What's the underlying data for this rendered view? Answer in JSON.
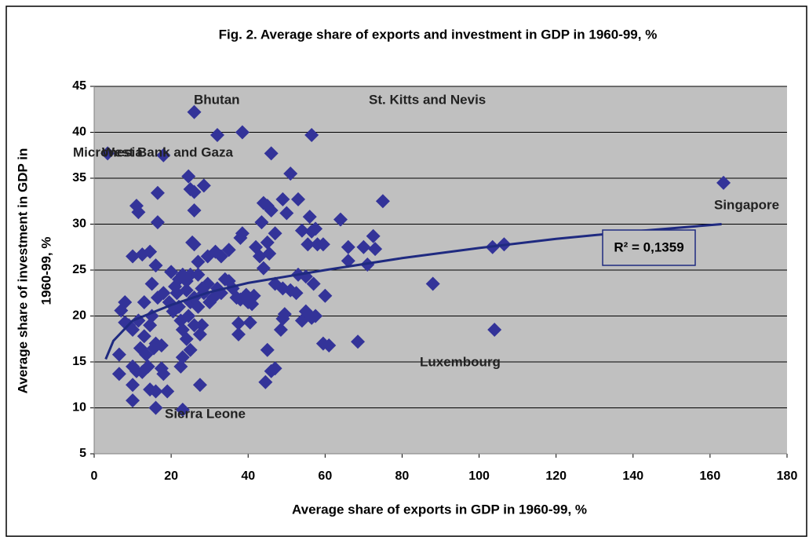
{
  "chart_data": {
    "type": "scatter",
    "title": "Fig. 2. Average share of exports and investment in GDP in 1960-99, %",
    "x_label": "Average share of exports in GDP in 1960-99, %",
    "y_label": [
      "Average share of  investment in GDP in",
      "1960-99, %"
    ],
    "xlim": [
      0,
      180
    ],
    "ylim": [
      5,
      45
    ],
    "xticks": [
      0,
      20,
      40,
      60,
      80,
      100,
      120,
      140,
      160,
      180
    ],
    "yticks": [
      5,
      10,
      15,
      20,
      25,
      30,
      35,
      40,
      45
    ],
    "grid": true,
    "color": "#333399",
    "x": [
      3.5,
      18,
      26,
      32,
      38.5,
      46,
      56.5,
      163.5,
      104,
      88,
      103.5,
      106.5,
      23,
      27.5,
      16,
      24.5,
      25,
      26,
      28.5,
      26,
      25.5,
      26,
      16.5,
      11,
      11.5,
      16.5,
      51,
      49,
      53,
      44,
      45,
      46,
      50,
      43.5,
      47,
      38.5,
      38,
      54,
      56.5,
      57.5,
      56,
      64,
      75,
      72.5,
      73,
      70,
      66,
      66,
      71,
      55.5,
      58,
      59.5,
      42,
      43,
      45.5,
      35,
      33,
      29.5,
      31.5,
      27,
      10,
      12.5,
      14.5,
      16,
      20,
      23,
      25,
      44,
      53,
      55,
      57,
      47,
      49,
      51,
      52.5,
      60,
      7,
      8,
      8,
      9,
      10,
      11.5,
      13,
      14.5,
      15,
      13,
      12,
      13.5,
      15.5,
      17.5,
      16,
      14,
      10,
      11,
      12.5,
      17.5,
      18,
      10,
      14.5,
      16,
      19,
      10,
      6.5,
      6.5,
      15,
      16.5,
      18,
      19.5,
      20.5,
      21.5,
      22,
      22.5,
      23,
      24,
      25,
      23,
      22.5,
      24.5,
      25,
      26,
      27,
      28,
      28.5,
      29.5,
      30,
      31,
      32,
      33,
      34,
      35,
      36,
      37,
      38,
      39.5,
      40,
      41,
      41.5,
      37.5,
      37.5,
      40.5,
      44.5,
      45,
      46,
      47,
      48.5,
      49,
      54,
      55,
      56.5,
      57.5,
      59.5,
      61,
      68.5,
      49.5,
      21,
      22,
      27,
      28,
      24,
      26,
      27.5,
      24,
      45
    ],
    "values": [
      37.7,
      37.5,
      42.2,
      39.7,
      40,
      37.7,
      39.7,
      34.5,
      18.5,
      23.5,
      27.5,
      27.8,
      9.8,
      12.5,
      10,
      35.2,
      33.8,
      33.5,
      34.2,
      31.5,
      28,
      27.8,
      33.4,
      32,
      31.3,
      30.2,
      35.5,
      32.7,
      32.7,
      32.3,
      32,
      31.5,
      31.2,
      30.2,
      29,
      29,
      28.5,
      29.3,
      29.2,
      29.5,
      30.8,
      30.5,
      32.5,
      28.7,
      27.3,
      27.5,
      27.5,
      26,
      25.6,
      27.8,
      27.8,
      27.8,
      27.5,
      26.5,
      26.8,
      27.2,
      26.5,
      26.5,
      27,
      25.9,
      26.5,
      26.7,
      27,
      25.5,
      24.8,
      24.5,
      24.5,
      25.2,
      24.5,
      24.3,
      23.5,
      23.5,
      23,
      22.8,
      22.5,
      22.2,
      20.6,
      21.5,
      19.3,
      19,
      18.5,
      19.5,
      21.5,
      19,
      20,
      17.8,
      16.5,
      15.8,
      16.5,
      16.8,
      17,
      14.5,
      14.5,
      14,
      13.9,
      14.3,
      13.7,
      12.5,
      12,
      11.8,
      11.8,
      10.8,
      15.8,
      13.7,
      23.5,
      22,
      22.5,
      21.5,
      20.5,
      22.5,
      21,
      19.5,
      18.5,
      17.5,
      16.3,
      15.5,
      14.5,
      20,
      21.5,
      22,
      21,
      19,
      22.5,
      23.5,
      21.5,
      22,
      23,
      22.5,
      24,
      23.8,
      23,
      22,
      21.8,
      22.3,
      21.5,
      21.3,
      22.2,
      19.2,
      18,
      19.3,
      12.8,
      16.3,
      14,
      14.3,
      18.5,
      19.7,
      19.5,
      20.5,
      19.8,
      20,
      17,
      16.8,
      17.2,
      20.2,
      23.2,
      24,
      24.5,
      23,
      22.8,
      19,
      18,
      23.8,
      28
    ],
    "trendline": {
      "color": "#1f2a80",
      "label": "R² = 0,1359",
      "x": [
        3,
        5,
        10,
        20,
        30,
        40,
        60,
        80,
        100,
        120,
        140,
        163
      ],
      "values": [
        15.3,
        17.3,
        19.5,
        21.2,
        22.6,
        23.6,
        25.0,
        26.3,
        27.4,
        28.4,
        29.2,
        30.0
      ]
    },
    "annotations": [
      "Bhutan",
      "St. Kitts and Nevis",
      "Micronesia",
      "West Bank and Gaza",
      "Singapore",
      "Luxembourg",
      "Sierra Leone"
    ]
  }
}
